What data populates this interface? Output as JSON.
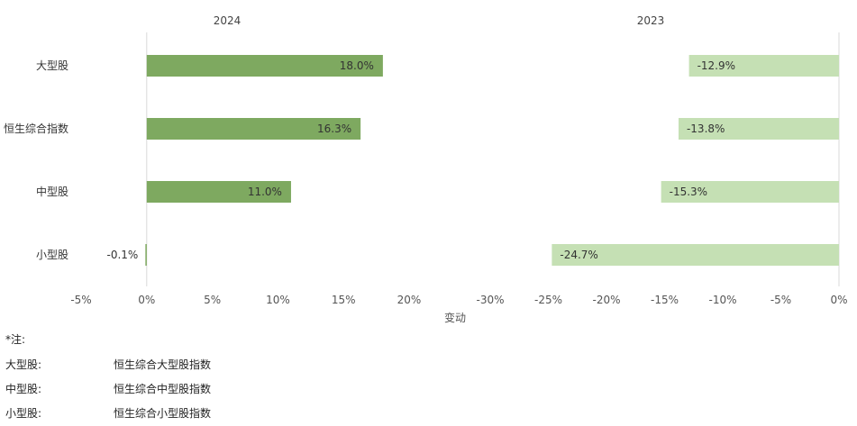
{
  "chart_data": {
    "type": "bar",
    "orientation": "horizontal",
    "categories": [
      "大型股",
      "恒生综合指数",
      "中型股",
      "小型股"
    ],
    "panels": [
      {
        "title": "2024",
        "color": "#7ea960",
        "values": [
          18.0,
          16.3,
          11.0,
          -0.1
        ],
        "data_labels": [
          "18.0%",
          "16.3%",
          "11.0%",
          "-0.1%"
        ],
        "xlim": [
          -5,
          20
        ],
        "ticks": [
          -5,
          0,
          5,
          10,
          15,
          20
        ],
        "tick_labels": [
          "-5%",
          "0%",
          "5%",
          "10%",
          "15%",
          "20%"
        ]
      },
      {
        "title": "2023",
        "color": "#c5e0b4",
        "values": [
          -12.9,
          -13.8,
          -15.3,
          -24.7
        ],
        "data_labels": [
          "-12.9%",
          "-13.8%",
          "-15.3%",
          "-24.7%"
        ],
        "xlim": [
          -30,
          0
        ],
        "ticks": [
          -30,
          -25,
          -20,
          -15,
          -10,
          -5,
          0
        ],
        "tick_labels": [
          "-30%",
          "-25%",
          "-20%",
          "-15%",
          "-10%",
          "-5%",
          "0%"
        ]
      }
    ],
    "xlabel": "变动",
    "grid": false,
    "legend": "none"
  },
  "notes": {
    "heading": "*注:",
    "items": [
      {
        "key": "大型股:",
        "value": "恒生综合大型股指数"
      },
      {
        "key": "中型股:",
        "value": "恒生综合中型股指数"
      },
      {
        "key": "小型股:",
        "value": "恒生综合小型股指数"
      }
    ]
  }
}
